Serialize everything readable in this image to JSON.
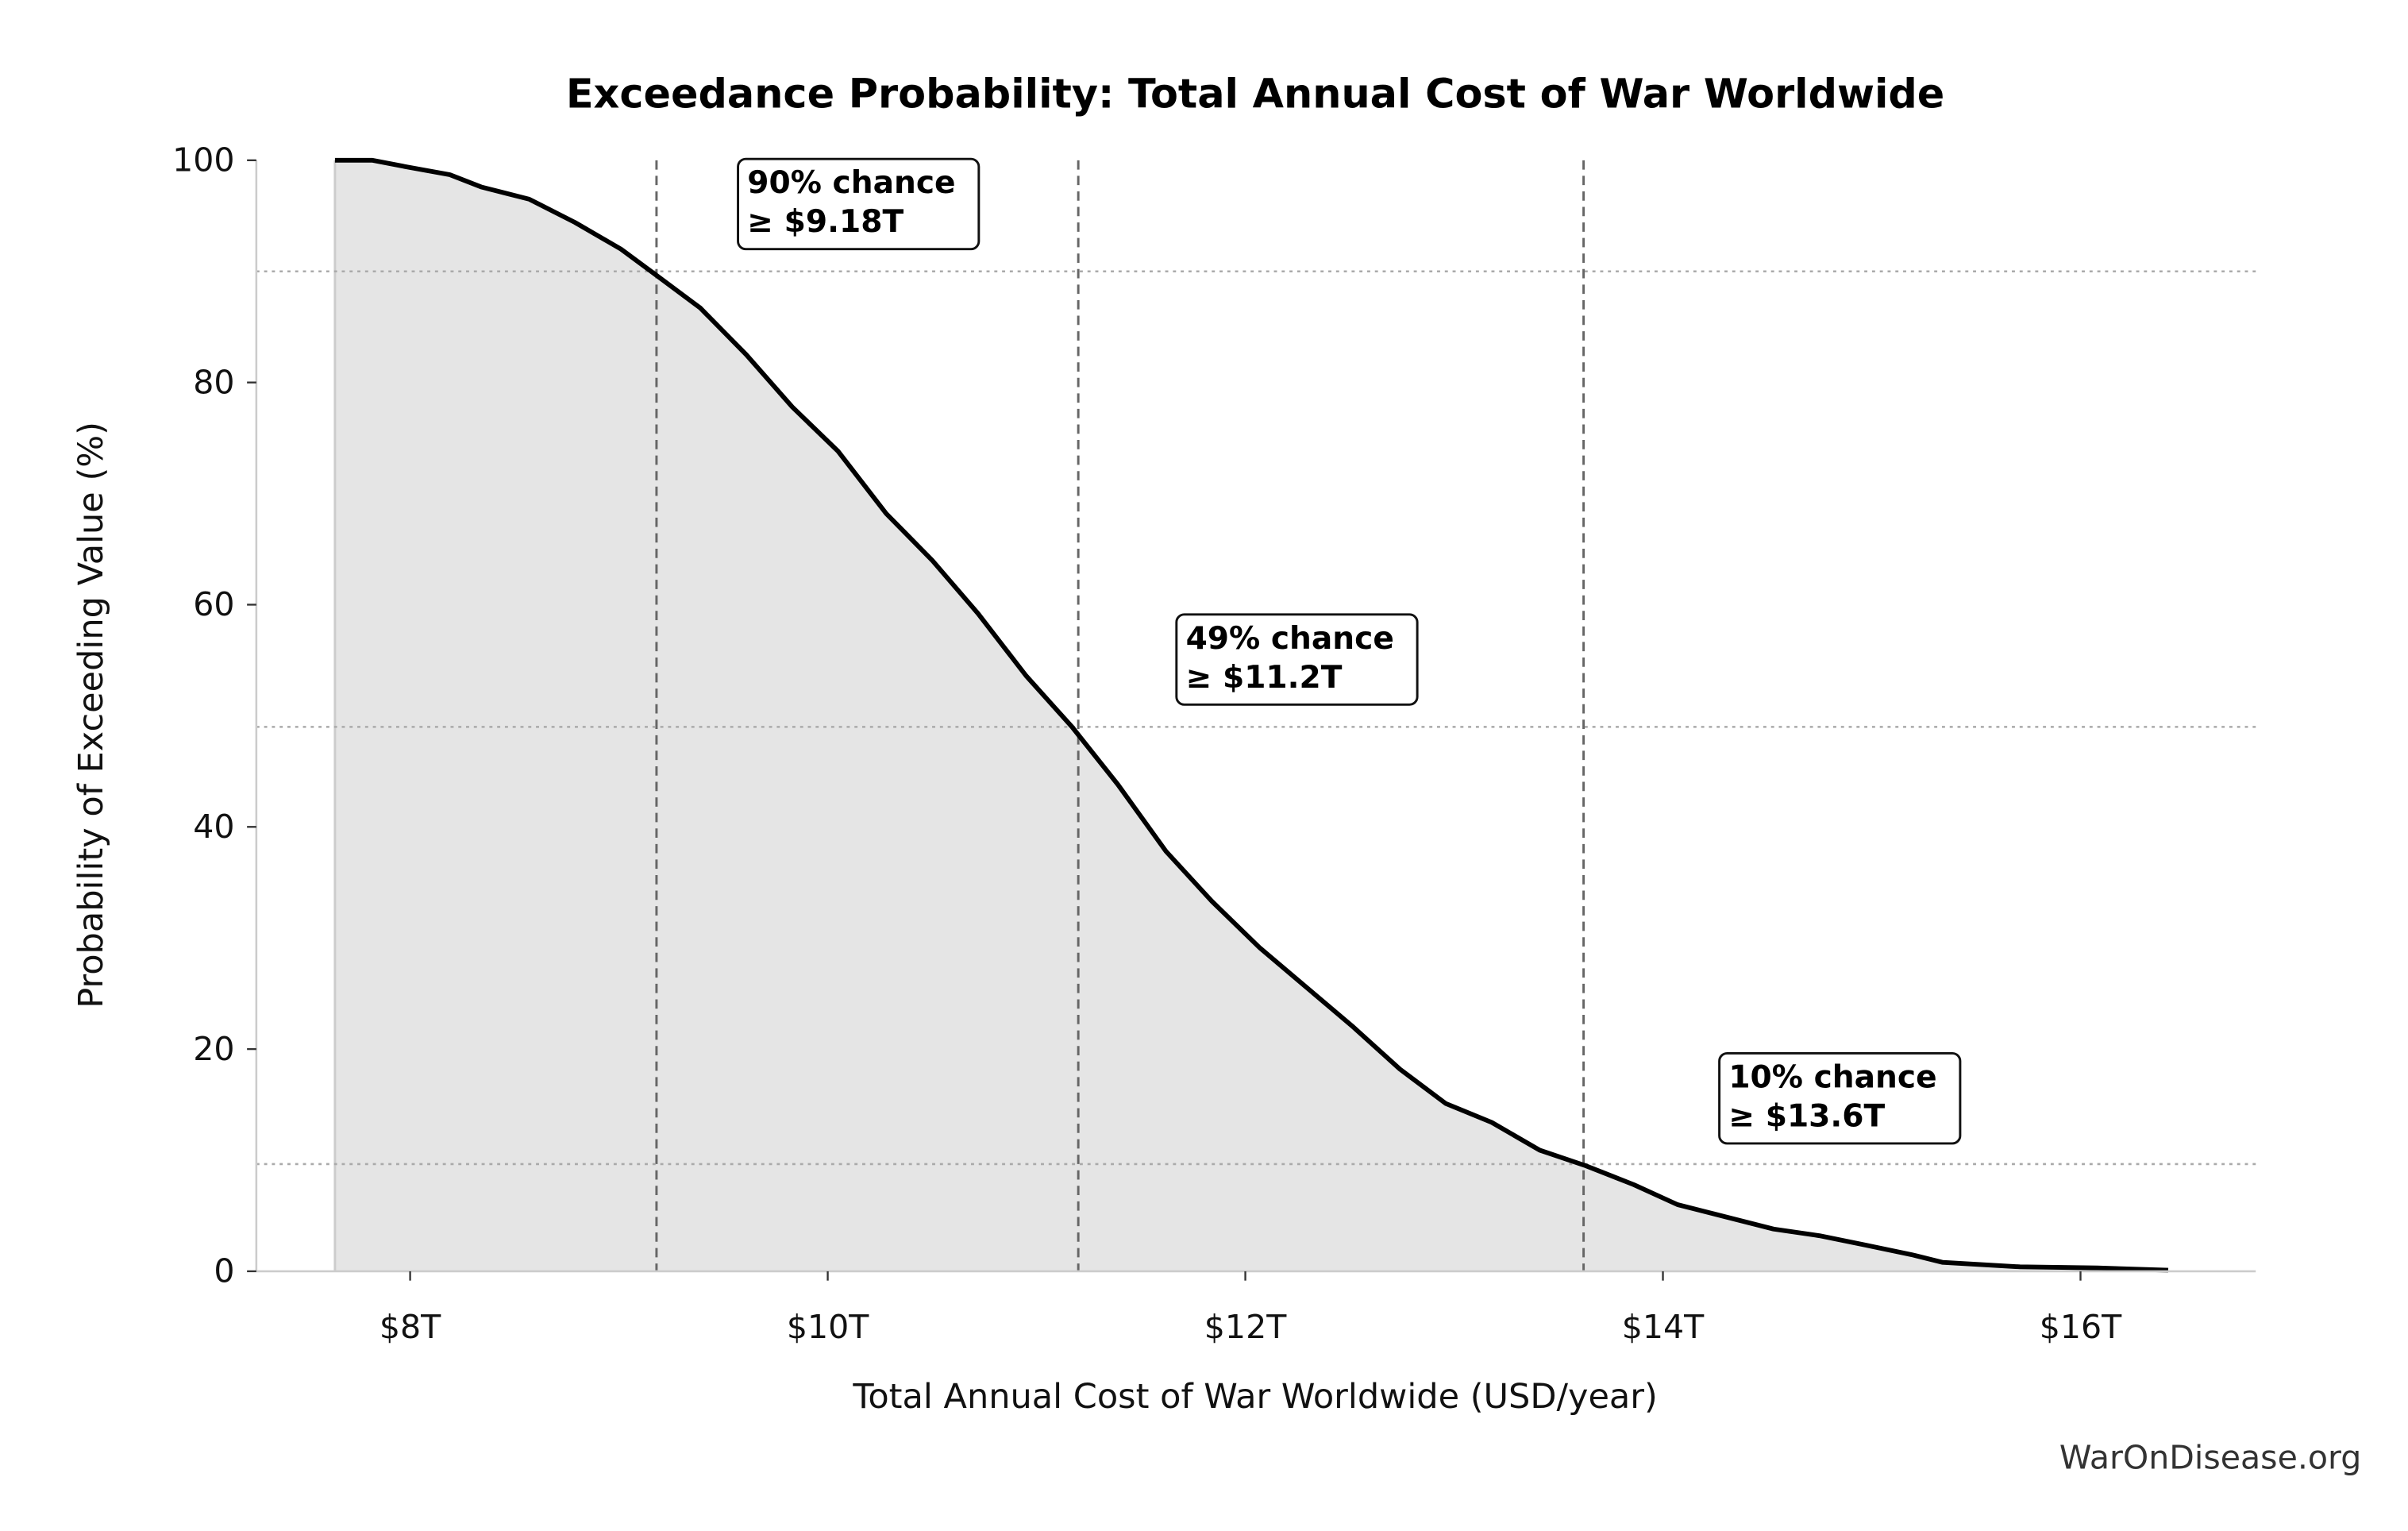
{
  "chart_data": {
    "type": "area",
    "title": "Exceedance Probability: Total Annual Cost of War Worldwide",
    "xlabel": "Total Annual Cost of War Worldwide (USD/year)",
    "ylabel": "Probability of Exceeding Value (%)",
    "xlim": [
      7.27,
      16.8
    ],
    "ylim": [
      0,
      100
    ],
    "x_ticks": [
      {
        "value": 8,
        "label": "$8T"
      },
      {
        "value": 10,
        "label": "$10T"
      },
      {
        "value": 12,
        "label": "$12T"
      },
      {
        "value": 14,
        "label": "$14T"
      },
      {
        "value": 16,
        "label": "$16T"
      }
    ],
    "y_ticks": [
      {
        "value": 0,
        "label": "0"
      },
      {
        "value": 20,
        "label": "20"
      },
      {
        "value": 40,
        "label": "40"
      },
      {
        "value": 60,
        "label": "60"
      },
      {
        "value": 80,
        "label": "80"
      },
      {
        "value": 100,
        "label": "100"
      }
    ],
    "series": [
      {
        "name": "Exceedance probability",
        "x": [
          7.64,
          7.82,
          7.985,
          8.19,
          8.34,
          8.57,
          8.79,
          9.01,
          9.19,
          9.39,
          9.61,
          9.83,
          10.05,
          10.28,
          10.5,
          10.72,
          10.95,
          11.17,
          11.39,
          11.62,
          11.84,
          12.07,
          12.29,
          12.51,
          12.74,
          12.96,
          13.18,
          13.41,
          13.63,
          13.86,
          14.07,
          14.3,
          14.53,
          14.75,
          14.96,
          15.19,
          15.34,
          15.71,
          16.08,
          16.42
        ],
        "y": [
          100,
          100,
          99.4,
          98.7,
          97.6,
          96.5,
          94.4,
          92,
          89.5,
          86.7,
          82.5,
          77.8,
          73.8,
          68.2,
          64,
          59.2,
          53.6,
          49,
          43.8,
          37.8,
          33.3,
          29.1,
          25.6,
          22.1,
          18.2,
          15.1,
          13.4,
          10.9,
          9.5,
          7.8,
          6,
          4.9,
          3.8,
          3.2,
          2.4,
          1.5,
          0.8,
          0.4,
          0.3,
          0.1
        ]
      }
    ],
    "annotations": [
      {
        "x": 9.18,
        "y": 90,
        "line1": "90% chance",
        "line2": "≥ $9.18T",
        "box_x": 9.6,
        "box_y": 99
      },
      {
        "x": 11.2,
        "y": 49,
        "line1": "49% chance",
        "line2": "≥ $11.2T",
        "box_x": 11.7,
        "box_y": 58
      },
      {
        "x": 13.62,
        "y": 9.65,
        "line1": "10% chance",
        "line2": "≥ $13.6T",
        "box_x": 14.3,
        "box_y": 18.5
      }
    ],
    "grid": false,
    "fill_color": "#e5e5e5",
    "line_color": "#000000"
  },
  "watermark": "WarOnDisease.org"
}
